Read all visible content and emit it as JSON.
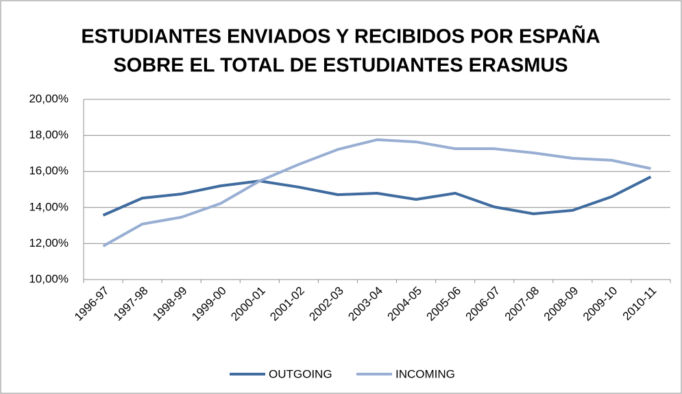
{
  "chart_data": {
    "type": "line",
    "title": [
      "ESTUDIANTES ENVIADOS Y RECIBIDOS POR ESPAÑA",
      "SOBRE EL TOTAL DE ESTUDIANTES ERASMUS"
    ],
    "categories": [
      "1996-97",
      "1997-98",
      "1998-99",
      "1999-00",
      "2000-01",
      "2001-02",
      "2002-03",
      "2003-04",
      "2004-05",
      "2005-06",
      "2006-07",
      "2007-08",
      "2008-09",
      "2009-10",
      "2010-11"
    ],
    "series": [
      {
        "name": "OUTGOING",
        "color": "#3f6b9f",
        "values": [
          13.57,
          14.52,
          14.75,
          15.2,
          15.47,
          15.13,
          14.71,
          14.79,
          14.45,
          14.79,
          14.03,
          13.65,
          13.84,
          14.6,
          15.7
        ]
      },
      {
        "name": "INCOMING",
        "color": "#98aed3",
        "values": [
          11.86,
          13.08,
          13.46,
          14.22,
          15.47,
          16.39,
          17.22,
          17.76,
          17.64,
          17.26,
          17.26,
          17.03,
          16.73,
          16.62,
          16.16
        ]
      }
    ],
    "ylim": [
      10,
      20
    ],
    "yticks": [
      {
        "value": 10,
        "label": "10,00%"
      },
      {
        "value": 12,
        "label": "12,00%"
      },
      {
        "value": 14,
        "label": "14,00%"
      },
      {
        "value": 16,
        "label": "16,00%"
      },
      {
        "value": 18,
        "label": "18,00%"
      },
      {
        "value": 20,
        "label": "20,00%"
      }
    ],
    "grid": true,
    "legend": "bottom"
  }
}
